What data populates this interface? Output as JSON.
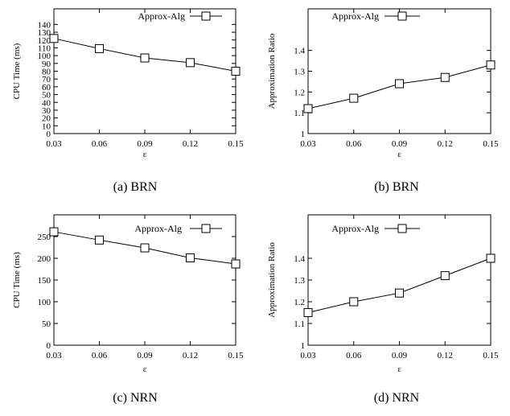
{
  "chart_data": [
    {
      "type": "line",
      "caption": "(a)  BRN",
      "xlabel": "ε",
      "ylabel": "CPU Time (ms)",
      "x": [
        0.03,
        0.06,
        0.09,
        0.12,
        0.15
      ],
      "xticks": [
        "0.03",
        "0.06",
        "0.09",
        "0.12",
        "0.15"
      ],
      "yticks": [
        "0",
        "10",
        "20",
        "30",
        "40",
        "50",
        "60",
        "70",
        "80",
        "90",
        "100",
        "110",
        "120",
        "130",
        "140"
      ],
      "ylim": [
        0,
        160
      ],
      "legend_position": "top-right",
      "series": [
        {
          "name": "Approx-Alg",
          "marker": "square",
          "values": [
            122,
            109,
            97,
            91,
            80
          ]
        }
      ]
    },
    {
      "type": "line",
      "caption": "(b)  BRN",
      "xlabel": "ε",
      "ylabel": "Approximation Ratio",
      "x": [
        0.03,
        0.06,
        0.09,
        0.12,
        0.15
      ],
      "xticks": [
        "0.03",
        "0.06",
        "0.09",
        "0.12",
        "0.15"
      ],
      "yticks": [
        "1",
        "1.1",
        "1.2",
        "1.3",
        "1.4"
      ],
      "ylim": [
        1,
        1.6
      ],
      "legend_position": "top-center",
      "series": [
        {
          "name": "Approx-Alg",
          "marker": "square",
          "values": [
            1.12,
            1.17,
            1.24,
            1.27,
            1.33
          ]
        }
      ]
    },
    {
      "type": "line",
      "caption": "(c)  NRN",
      "xlabel": "ε",
      "ylabel": "CPU Time (ms)",
      "x": [
        0.03,
        0.06,
        0.09,
        0.12,
        0.15
      ],
      "xticks": [
        "0.03",
        "0.06",
        "0.09",
        "0.12",
        "0.15"
      ],
      "yticks": [
        "0",
        "50",
        "100",
        "150",
        "200",
        "250"
      ],
      "ylim": [
        0,
        300
      ],
      "legend_position": "top-right",
      "series": [
        {
          "name": "Approx-Alg",
          "marker": "square",
          "values": [
            261,
            242,
            224,
            201,
            187
          ]
        }
      ]
    },
    {
      "type": "line",
      "caption": "(d)  NRN",
      "xlabel": "ε",
      "ylabel": "Approximation Ratio",
      "x": [
        0.03,
        0.06,
        0.09,
        0.12,
        0.15
      ],
      "xticks": [
        "0.03",
        "0.06",
        "0.09",
        "0.12",
        "0.15"
      ],
      "yticks": [
        "1",
        "1.1",
        "1.2",
        "1.3",
        "1.4"
      ],
      "ylim": [
        1,
        1.6
      ],
      "legend_position": "top-center",
      "series": [
        {
          "name": "Approx-Alg",
          "marker": "square",
          "values": [
            1.15,
            1.2,
            1.24,
            1.32,
            1.4
          ]
        }
      ]
    }
  ]
}
